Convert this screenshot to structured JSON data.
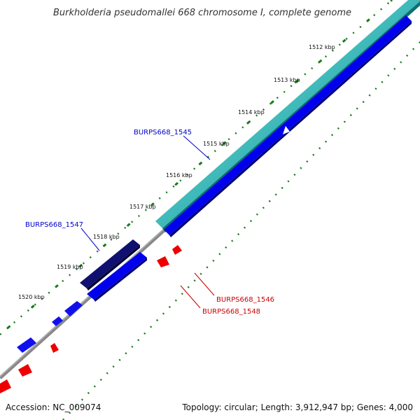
{
  "title": "Burkholderia pseudomallei 668 chromosome I, complete genome",
  "accession": "Accession: NC_009074",
  "summary": "Topology: circular; Length: 3,912,947 bp; Genes: 4,000",
  "ticks": [
    "1512 kbp",
    "1513 kbp",
    "1514 kbp",
    "1515 kbp",
    "1516 kbp",
    "1517 kbp",
    "1518 kbp",
    "1519 kbp",
    "1520 kbp"
  ],
  "genes": {
    "g1545": "BURPS668_1545",
    "g1547": "BURPS668_1547",
    "g1546": "BURPS668_1546",
    "g1548": "BURPS668_1548"
  },
  "colors": {
    "forward_cds": "#0000ee",
    "forward_cds_dark": "#000080",
    "reverse_cds": "#ee0000",
    "rna_feature": "#20c8c8",
    "backbone": "#888888",
    "dots": "#1a7a1a"
  }
}
